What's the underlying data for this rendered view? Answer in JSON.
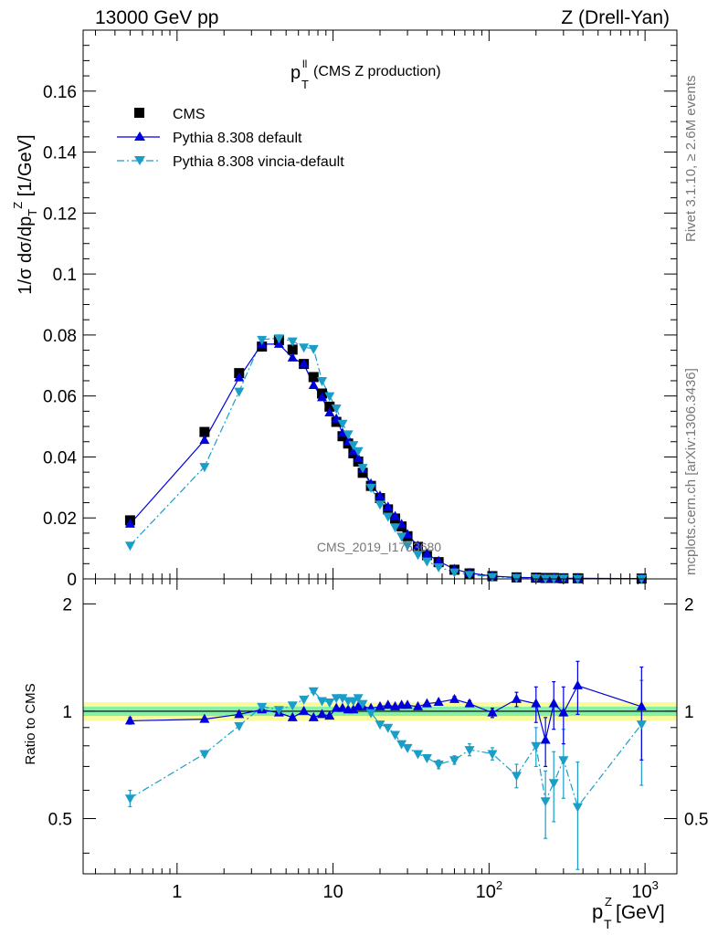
{
  "header": {
    "left": "13000 GeV pp",
    "right": "Z (Drell-Yan)"
  },
  "side_labels": {
    "rivet": "Rivet 3.1.10, ≥ 2.6M events",
    "mcplots": "mcplots.cern.ch [arXiv:1306.3436]"
  },
  "watermark": "CMS_2019_I1753680",
  "plot_title": {
    "main": "p",
    "sup": "ll",
    "sub": "T",
    "rest": " (CMS Z production)"
  },
  "legend": [
    {
      "label": "CMS"
    },
    {
      "label": "Pythia 8.308 default"
    },
    {
      "label": "Pythia 8.308 vincia-default"
    }
  ],
  "colors": {
    "cms": "#000000",
    "default": "#0000dd",
    "vincia": "#1a9ec8",
    "band_inner": "#86f0a8",
    "band_outer": "#fafa9a"
  },
  "chart_data": [
    {
      "type": "scatter",
      "name": "main",
      "x_scale": "log",
      "xlim": [
        0.25,
        1600
      ],
      "ylim": [
        0,
        0.18
      ],
      "yticks": [
        0,
        0.02,
        0.04,
        0.06,
        0.08,
        0.1,
        0.12,
        0.14,
        0.16
      ],
      "ytick_labels": [
        "0",
        "0.02",
        "0.04",
        "0.06",
        "0.08",
        "0.1",
        "0.12",
        "0.14",
        "0.16"
      ],
      "ylabel": "1/σ dσ/dp",
      "ylabel_sub": "T",
      "ylabel_sup": "Z",
      "ylabel_unit": " [1/GeV]",
      "x": [
        0.5,
        1.5,
        2.5,
        3.5,
        4.5,
        5.5,
        6.5,
        7.5,
        8.5,
        9.5,
        10.5,
        11.5,
        12.5,
        13.5,
        14.5,
        15.5,
        17.5,
        20,
        22.5,
        25,
        27.5,
        30,
        35,
        40,
        47.5,
        60,
        75,
        105,
        150,
        200,
        230,
        260,
        300,
        370,
        950
      ],
      "series": [
        {
          "name": "CMS",
          "values": [
            0.0192,
            0.0482,
            0.0675,
            0.0762,
            0.0783,
            0.0752,
            0.0705,
            0.0662,
            0.0608,
            0.0565,
            0.0515,
            0.0468,
            0.0444,
            0.0412,
            0.0385,
            0.0348,
            0.0305,
            0.0265,
            0.0228,
            0.0198,
            0.0172,
            0.014,
            0.0105,
            0.0078,
            0.0055,
            0.003,
            0.0018,
            0.0009,
            0.0005,
            0.0004,
            0.0003,
            0.0003,
            0.0002,
            0.0002,
            0.0001
          ]
        },
        {
          "name": "Pythia 8.308 default",
          "values": [
            0.018,
            0.0455,
            0.066,
            0.077,
            0.077,
            0.0725,
            0.0705,
            0.0635,
            0.0595,
            0.0545,
            0.0525,
            0.0478,
            0.045,
            0.0418,
            0.0395,
            0.036,
            0.0312,
            0.0272,
            0.0236,
            0.0205,
            0.0179,
            0.0146,
            0.0108,
            0.0082,
            0.0058,
            0.0032,
            0.0019,
            0.0009,
            0.0005,
            0.0004,
            0.0003,
            0.0003,
            0.0002,
            0.0002,
            0.0001
          ]
        },
        {
          "name": "Pythia 8.308 vincia-default",
          "values": [
            0.011,
            0.0368,
            0.0615,
            0.0785,
            0.079,
            0.078,
            0.076,
            0.0755,
            0.065,
            0.06,
            0.056,
            0.051,
            0.0475,
            0.044,
            0.042,
            0.0365,
            0.03,
            0.0245,
            0.0205,
            0.017,
            0.014,
            0.011,
            0.008,
            0.0058,
            0.0039,
            0.0022,
            0.0014,
            0.0007,
            0.0004,
            0.0003,
            0.0002,
            0.0002,
            0.0002,
            0.0001,
            0.0001
          ]
        }
      ]
    },
    {
      "type": "scatter",
      "name": "ratio",
      "x_scale": "log",
      "xlim": [
        0.25,
        1600
      ],
      "ylim": [
        0.35,
        2.35
      ],
      "yticks": [
        0.5,
        1,
        2
      ],
      "ytick_labels": [
        "0.5",
        "1",
        "2"
      ],
      "xticks": [
        1,
        10,
        100,
        1000
      ],
      "xtick_labels": [
        {
          "base": "1",
          "exp": ""
        },
        {
          "base": "10",
          "exp": ""
        },
        {
          "base": "10",
          "exp": "2"
        },
        {
          "base": "10",
          "exp": "3"
        }
      ],
      "xlabel": "p",
      "xlabel_sub": "T",
      "xlabel_sup": "Z",
      "xlabel_unit": " [GeV]",
      "ylabel": "Ratio to CMS",
      "x": [
        0.5,
        1.5,
        2.5,
        3.5,
        4.5,
        5.5,
        6.5,
        7.5,
        8.5,
        9.5,
        10.5,
        11.5,
        12.5,
        13.5,
        14.5,
        15.5,
        17.5,
        20,
        22.5,
        25,
        27.5,
        30,
        35,
        40,
        47.5,
        60,
        75,
        105,
        150,
        200,
        230,
        260,
        300,
        370,
        950
      ],
      "series": [
        {
          "name": "Pythia 8.308 default",
          "values": [
            0.94,
            0.95,
            0.98,
            1.01,
            0.99,
            0.96,
            1.0,
            0.96,
            0.98,
            0.97,
            1.02,
            1.02,
            1.01,
            1.01,
            1.03,
            1.03,
            1.02,
            1.03,
            1.04,
            1.03,
            1.04,
            1.04,
            1.03,
            1.05,
            1.06,
            1.08,
            1.05,
            0.99,
            1.08,
            1.05,
            0.83,
            1.05,
            0.99,
            1.18,
            1.03
          ],
          "errors": [
            0.02,
            0.01,
            0.01,
            0.01,
            0.01,
            0.01,
            0.01,
            0.01,
            0.01,
            0.01,
            0.01,
            0.01,
            0.01,
            0.01,
            0.01,
            0.01,
            0.01,
            0.01,
            0.01,
            0.01,
            0.01,
            0.01,
            0.01,
            0.01,
            0.01,
            0.02,
            0.02,
            0.03,
            0.05,
            0.12,
            0.13,
            0.16,
            0.18,
            0.2,
            0.3
          ]
        },
        {
          "name": "Pythia 8.308 vincia-default",
          "values": [
            0.57,
            0.76,
            0.91,
            1.03,
            1.01,
            1.04,
            1.08,
            1.14,
            1.07,
            1.06,
            1.09,
            1.09,
            1.07,
            1.07,
            1.09,
            1.05,
            0.99,
            0.92,
            0.9,
            0.86,
            0.81,
            0.79,
            0.76,
            0.74,
            0.71,
            0.73,
            0.78,
            0.76,
            0.66,
            0.8,
            0.56,
            0.63,
            0.73,
            0.54,
            0.92
          ],
          "errors": [
            0.03,
            0.01,
            0.01,
            0.01,
            0.01,
            0.01,
            0.01,
            0.01,
            0.01,
            0.01,
            0.01,
            0.01,
            0.01,
            0.01,
            0.01,
            0.01,
            0.01,
            0.01,
            0.01,
            0.01,
            0.01,
            0.01,
            0.01,
            0.01,
            0.02,
            0.02,
            0.03,
            0.03,
            0.05,
            0.1,
            0.12,
            0.14,
            0.16,
            0.18,
            0.3
          ]
        }
      ],
      "band_inner": 0.03,
      "band_outer": 0.06
    }
  ]
}
